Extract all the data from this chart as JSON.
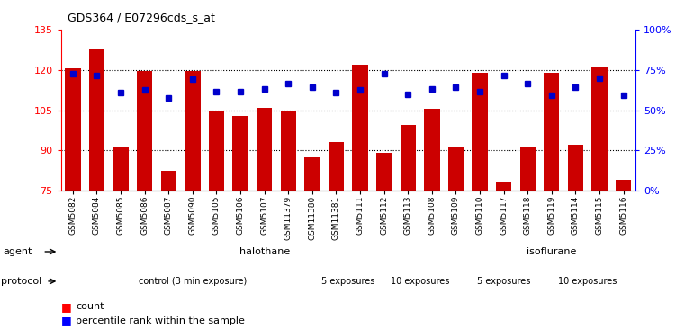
{
  "title": "GDS364 / E07296cds_s_at",
  "categories": [
    "GSM5082",
    "GSM5084",
    "GSM5085",
    "GSM5086",
    "GSM5087",
    "GSM5090",
    "GSM5105",
    "GSM5106",
    "GSM5107",
    "GSM11379",
    "GSM11380",
    "GSM11381",
    "GSM5111",
    "GSM5112",
    "GSM5113",
    "GSM5108",
    "GSM5109",
    "GSM5110",
    "GSM5117",
    "GSM5118",
    "GSM5119",
    "GSM5114",
    "GSM5115",
    "GSM5116"
  ],
  "bar_values": [
    120.5,
    127.5,
    91.5,
    119.5,
    82.5,
    119.5,
    104.5,
    103.0,
    106.0,
    105.0,
    87.5,
    93.0,
    122.0,
    89.0,
    99.5,
    105.5,
    91.0,
    119.0,
    78.0,
    91.5,
    119.0,
    92.0,
    121.0,
    79.0
  ],
  "dot_values": [
    118.5,
    118.0,
    111.5,
    112.5,
    109.5,
    116.5,
    112.0,
    112.0,
    113.0,
    115.0,
    113.5,
    111.5,
    112.5,
    118.5,
    111.0,
    113.0,
    113.5,
    112.0,
    118.0,
    115.0,
    110.5,
    113.5,
    117.0,
    110.5
  ],
  "bar_color": "#cc0000",
  "dot_color": "#0000cc",
  "ymin": 75,
  "ymax": 135,
  "yticks": [
    75,
    90,
    105,
    120,
    135
  ],
  "y2ticks": [
    0,
    25,
    50,
    75,
    100
  ],
  "y2ticklabels": [
    "0%",
    "25%",
    "50%",
    "75%",
    "100%"
  ],
  "halothane_bars": [
    0,
    17
  ],
  "isoflurane_bars": [
    17,
    24
  ],
  "control_bars": [
    0,
    11
  ],
  "p5h_bars": [
    11,
    13
  ],
  "p10h_bars": [
    13,
    17
  ],
  "p5i_bars": [
    17,
    20
  ],
  "p10i_bars": [
    20,
    24
  ],
  "halothane_color": "#aaffaa",
  "isoflurane_color": "#44dd44",
  "control_color": "#ffaaff",
  "exp_color": "#ff77ff",
  "background_color": "#ffffff"
}
